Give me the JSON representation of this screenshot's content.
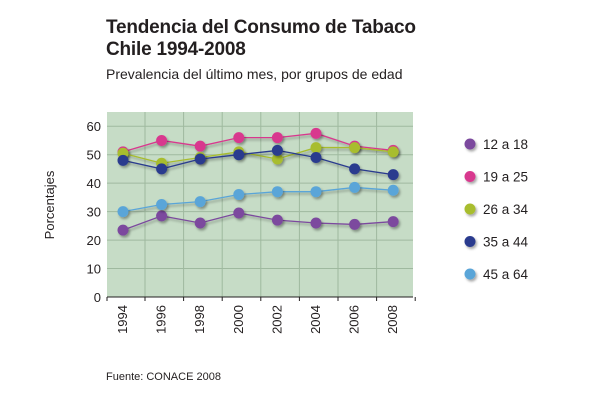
{
  "chart_data": {
    "type": "line",
    "title_line1": "Tendencia del Consumo de Tabaco",
    "title_line2": "Chile 1994-2008",
    "subtitle": "Prevalencia del último mes, por grupos de edad",
    "source": "Fuente: CONACE 2008",
    "xlabel": "",
    "ylabel": "Porcentajes",
    "ylim": [
      0,
      65
    ],
    "yticks": [
      0,
      10,
      20,
      30,
      40,
      50,
      60
    ],
    "x": [
      1994,
      1996,
      1998,
      2000,
      2002,
      2004,
      2006,
      2008
    ],
    "xtick_labels": [
      "1994",
      "1996",
      "1998",
      "2000",
      "2002",
      "2004",
      "2006",
      "2008"
    ],
    "grid": true,
    "legend_position": "right",
    "series": [
      {
        "name": "12 a 18",
        "color": "#7b4a9e",
        "values": [
          23.5,
          28.5,
          26,
          29.5,
          27,
          26,
          25.5,
          26.5
        ]
      },
      {
        "name": "19 a 25",
        "color": "#d8398e",
        "values": [
          51,
          55,
          53,
          56,
          56,
          57.5,
          53,
          51.5
        ]
      },
      {
        "name": "26 a 34",
        "color": "#a8bd2e",
        "values": [
          50.5,
          47,
          49,
          51,
          48.5,
          52.5,
          52.5,
          51
        ]
      },
      {
        "name": "35 a 44",
        "color": "#2a3b8e",
        "values": [
          48,
          45,
          48.5,
          50,
          51.5,
          49,
          45,
          43
        ]
      },
      {
        "name": "45 a 64",
        "color": "#5aa5d8",
        "values": [
          30,
          32.5,
          33.5,
          36,
          37,
          37,
          38.5,
          37.5
        ]
      }
    ]
  }
}
